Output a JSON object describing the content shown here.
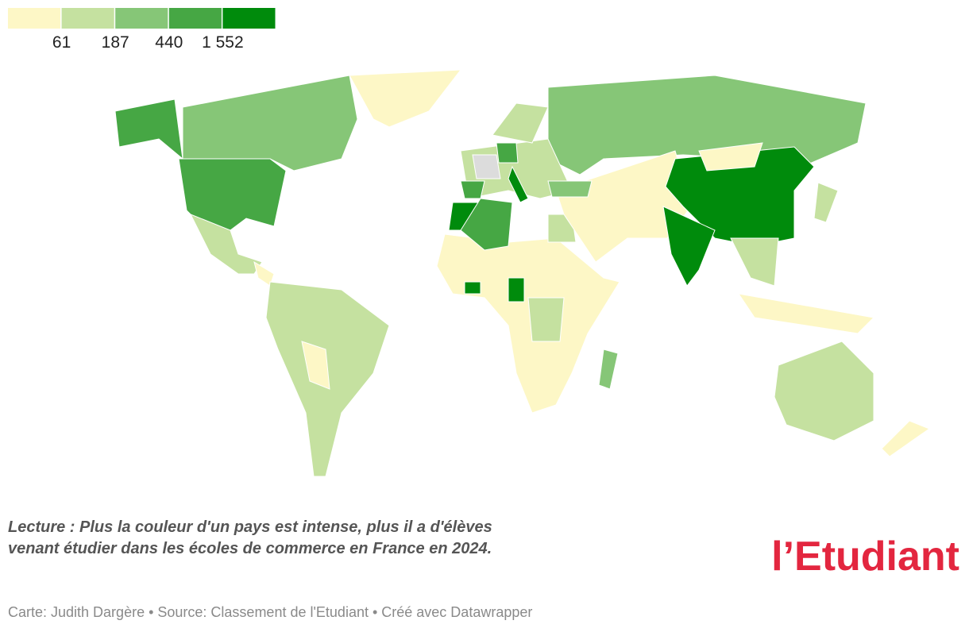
{
  "legend": {
    "colors": [
      "#fdf7c6",
      "#c5e1a0",
      "#86c677",
      "#46a744",
      "#008b0c"
    ],
    "thresholds": [
      61,
      187,
      440,
      {
        "value": 1552,
        "label": "1 552"
      }
    ]
  },
  "note": [
    "Lecture : Plus la couleur d'un pays est intense, plus il a d'élèves",
    "venant étudier dans les écoles de commerce en France en 2024."
  ],
  "logo": "l’Etudiant",
  "footer": "Carte: Judith Dargère • Source: Classement de l'Etudiant • Créé avec Datawrapper"
}
